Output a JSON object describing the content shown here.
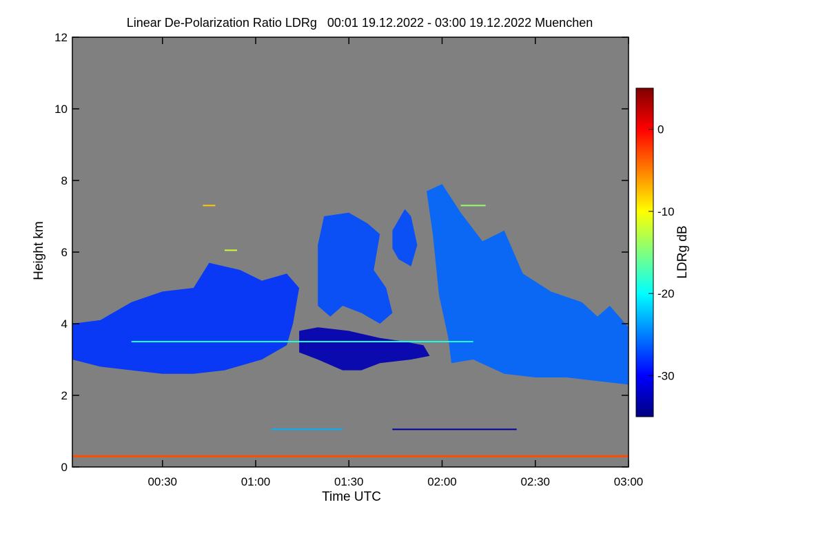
{
  "chart_data": {
    "type": "heatmap",
    "title": "Linear De-Polarization Ratio LDRg   00:01 19.12.2022 - 03:00 19.12.2022 Muenchen",
    "xlabel": "Time UTC",
    "ylabel": "Height km",
    "xlim_minutes": [
      1,
      180
    ],
    "ylim_km": [
      0,
      12
    ],
    "x_ticks": [
      {
        "minutes": 30,
        "label": "00:30"
      },
      {
        "minutes": 60,
        "label": "01:00"
      },
      {
        "minutes": 90,
        "label": "01:30"
      },
      {
        "minutes": 120,
        "label": "02:00"
      },
      {
        "minutes": 150,
        "label": "02:30"
      },
      {
        "minutes": 180,
        "label": "03:00"
      }
    ],
    "y_ticks": [
      {
        "value": 0,
        "label": "0"
      },
      {
        "value": 2,
        "label": "2"
      },
      {
        "value": 4,
        "label": "4"
      },
      {
        "value": 6,
        "label": "6"
      },
      {
        "value": 8,
        "label": "8"
      },
      {
        "value": 10,
        "label": "10"
      },
      {
        "value": 12,
        "label": "12"
      }
    ],
    "colorbar": {
      "label": "LDRg dB",
      "range": [
        -35,
        5
      ],
      "ticks": [
        {
          "value": 0,
          "label": "0"
        },
        {
          "value": -10,
          "label": "-10"
        },
        {
          "value": -20,
          "label": "-20"
        },
        {
          "value": -30,
          "label": "-30"
        }
      ],
      "colormap": [
        "#00007f",
        "#0000ff",
        "#007fff",
        "#00ffff",
        "#7fff7f",
        "#ffff00",
        "#ff7f00",
        "#ff0000",
        "#7f0000"
      ]
    },
    "background_color": "#808080",
    "cloud_regions": [
      {
        "name": "low-cloud-layer-0000-0100",
        "polygon": [
          [
            1,
            4.0
          ],
          [
            10,
            4.1
          ],
          [
            20,
            4.6
          ],
          [
            30,
            4.9
          ],
          [
            40,
            5.0
          ],
          [
            45,
            5.7
          ],
          [
            55,
            5.5
          ],
          [
            62,
            5.2
          ],
          [
            70,
            5.4
          ],
          [
            74,
            5.0
          ],
          [
            72,
            4.0
          ],
          [
            70,
            3.4
          ],
          [
            62,
            3.0
          ],
          [
            50,
            2.7
          ],
          [
            40,
            2.6
          ],
          [
            30,
            2.6
          ],
          [
            20,
            2.7
          ],
          [
            10,
            2.8
          ],
          [
            1,
            3.0
          ]
        ],
        "ldr_db": -28
      },
      {
        "name": "cloud-0120-0145",
        "polygon": [
          [
            80,
            6.2
          ],
          [
            82,
            7.0
          ],
          [
            90,
            7.1
          ],
          [
            96,
            6.8
          ],
          [
            100,
            6.5
          ],
          [
            98,
            5.5
          ],
          [
            102,
            5.0
          ],
          [
            104,
            4.3
          ],
          [
            100,
            4.0
          ],
          [
            94,
            4.3
          ],
          [
            88,
            4.5
          ],
          [
            84,
            4.2
          ],
          [
            80,
            4.5
          ]
        ],
        "ldr_db": -27
      },
      {
        "name": "cloud-0142-0150",
        "polygon": [
          [
            104,
            6.6
          ],
          [
            108,
            7.2
          ],
          [
            110,
            7.0
          ],
          [
            112,
            6.2
          ],
          [
            110,
            5.6
          ],
          [
            106,
            5.8
          ],
          [
            104,
            6.1
          ]
        ],
        "ldr_db": -27
      },
      {
        "name": "cloud-0155-0300",
        "polygon": [
          [
            115,
            7.7
          ],
          [
            120,
            7.9
          ],
          [
            126,
            7.1
          ],
          [
            133,
            6.3
          ],
          [
            140,
            6.6
          ],
          [
            146,
            5.4
          ],
          [
            155,
            4.9
          ],
          [
            165,
            4.6
          ],
          [
            170,
            4.2
          ],
          [
            174,
            4.5
          ],
          [
            180,
            3.9
          ],
          [
            180,
            2.3
          ],
          [
            170,
            2.4
          ],
          [
            160,
            2.5
          ],
          [
            150,
            2.5
          ],
          [
            140,
            2.6
          ],
          [
            130,
            3.0
          ],
          [
            123,
            2.9
          ],
          [
            122,
            3.6
          ],
          [
            119,
            4.8
          ],
          [
            117,
            6.5
          ]
        ],
        "ldr_db": -26
      },
      {
        "name": "dark-layer-0125-0200",
        "polygon": [
          [
            74,
            3.8
          ],
          [
            80,
            3.9
          ],
          [
            90,
            3.8
          ],
          [
            100,
            3.6
          ],
          [
            108,
            3.5
          ],
          [
            114,
            3.4
          ],
          [
            116,
            3.1
          ],
          [
            110,
            3.0
          ],
          [
            100,
            2.9
          ],
          [
            94,
            2.7
          ],
          [
            88,
            2.7
          ],
          [
            80,
            3.0
          ],
          [
            74,
            3.2
          ]
        ],
        "ldr_db": -33
      }
    ],
    "line_features": [
      {
        "name": "ground-clutter-layer",
        "x_range": [
          1,
          180
        ],
        "height_km": 0.3,
        "ldr_db": -3
      },
      {
        "name": "thin-layer-1km",
        "x_range": [
          104,
          144
        ],
        "height_km": 1.05,
        "ldr_db": -34
      },
      {
        "name": "thin-layer-1km-early",
        "x_range": [
          65,
          88
        ],
        "height_km": 1.05,
        "ldr_db": -23
      },
      {
        "name": "speck-7.3km-a",
        "x_range": [
          43,
          47
        ],
        "height_km": 7.3,
        "ldr_db": -8
      },
      {
        "name": "speck-7.3km-b",
        "x_range": [
          126,
          134
        ],
        "height_km": 7.3,
        "ldr_db": -14
      },
      {
        "name": "speck-6.05km",
        "x_range": [
          50,
          54
        ],
        "height_km": 6.05,
        "ldr_db": -12
      },
      {
        "name": "band-3.5km",
        "x_range": [
          20,
          130
        ],
        "height_km": 3.5,
        "ldr_db": -19
      }
    ]
  }
}
